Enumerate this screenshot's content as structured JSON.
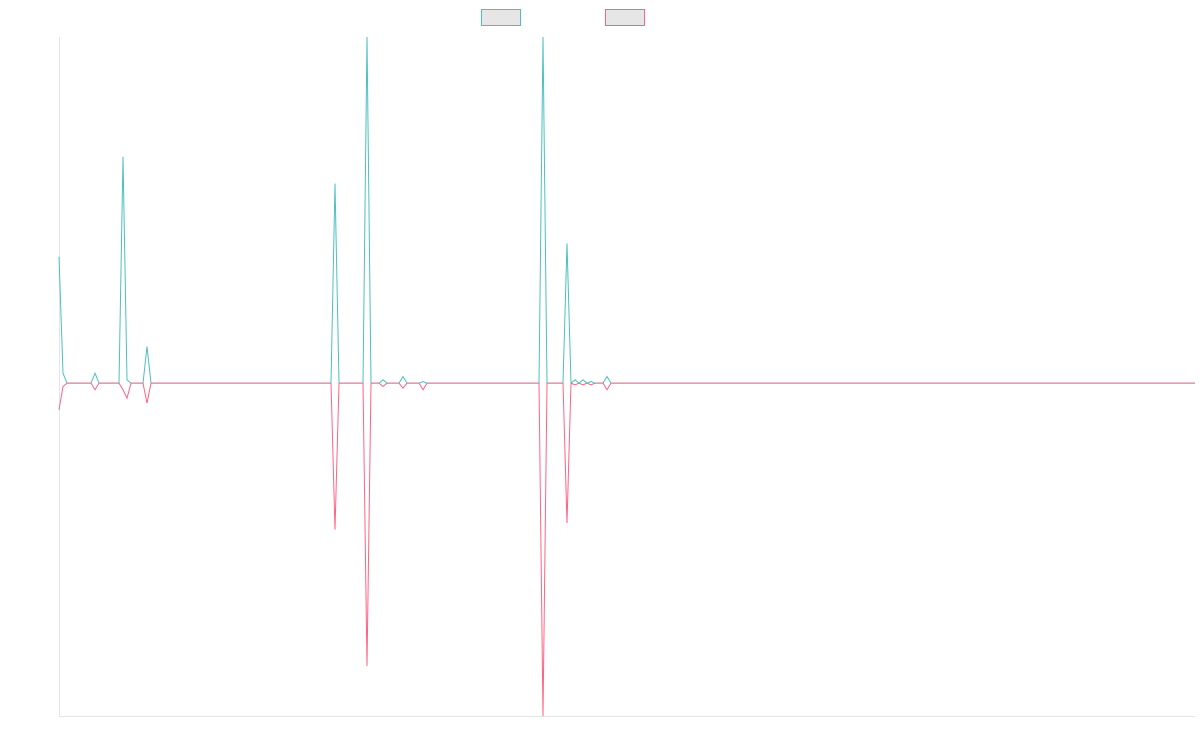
{
  "chart_data": {
    "type": "line",
    "x": [
      0,
      1,
      2,
      8,
      9,
      10,
      15,
      16,
      17,
      18,
      21,
      22,
      23,
      68,
      69,
      70,
      76,
      77,
      78,
      80,
      81,
      82,
      85,
      86,
      87,
      90,
      91,
      92,
      120,
      121,
      122,
      126,
      127,
      128,
      129,
      130,
      131,
      132,
      133,
      134,
      136,
      137,
      138,
      284
    ],
    "series": [
      {
        "color": "#4bc0c0",
        "values": [
          38,
          3,
          0,
          0,
          3,
          0,
          0,
          68,
          1,
          0,
          0,
          11,
          0,
          0,
          60,
          0,
          0,
          104,
          0,
          0,
          1,
          0,
          0,
          2,
          0,
          0,
          0.5,
          0,
          0,
          104,
          0,
          0,
          42,
          0,
          1,
          0,
          1,
          0,
          0.5,
          0,
          0,
          2,
          0,
          0
        ]
      },
      {
        "color": "#ff6384",
        "values": [
          -8,
          -1,
          0,
          0,
          -2,
          0,
          0,
          -2,
          -4.5,
          0,
          0,
          -6,
          0,
          0,
          -44,
          0,
          0,
          -85,
          0,
          0,
          -1,
          0,
          0,
          -1.5,
          0,
          0,
          -2,
          0,
          0,
          -100,
          0,
          0,
          -42,
          0,
          -0.5,
          0,
          -0.5,
          0,
          -0.5,
          0,
          0,
          -2,
          0,
          0
        ]
      }
    ],
    "xlim": [
      0,
      284
    ],
    "ylim": [
      -100,
      104
    ]
  }
}
